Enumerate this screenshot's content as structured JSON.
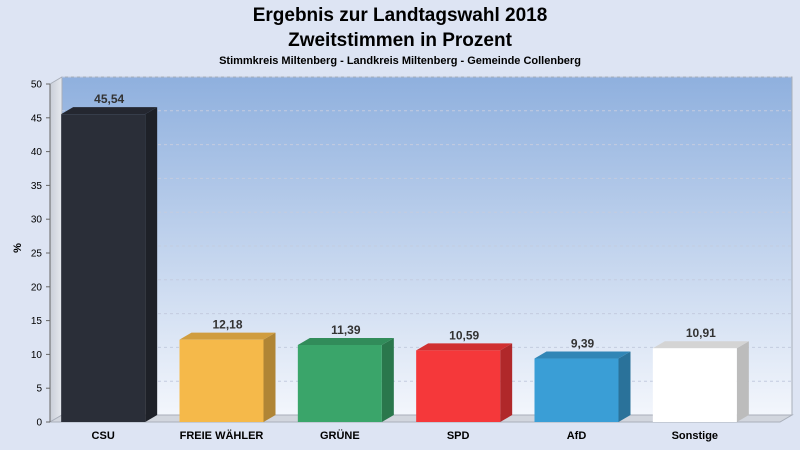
{
  "chart_data": {
    "type": "bar",
    "title": "Ergebnis zur Landtagswahl 2018",
    "title_line2": "Zweitstimmen in Prozent",
    "subtitle": "Stimmkreis Miltenberg - Landkreis Miltenberg - Gemeinde Collenberg",
    "ylabel": "%",
    "ylim": [
      0,
      50
    ],
    "yticks": [
      0,
      5,
      10,
      15,
      20,
      25,
      30,
      35,
      40,
      45,
      50
    ],
    "grid": true,
    "categories": [
      "CSU",
      "FREIE WÄHLER",
      "GRÜNE",
      "SPD",
      "AfD",
      "Sonstige"
    ],
    "values": [
      45.54,
      12.18,
      11.39,
      10.59,
      9.39,
      10.91
    ],
    "value_labels": [
      "45,54",
      "12,18",
      "11,39",
      "10,59",
      "9,39",
      "10,91"
    ],
    "colors": [
      "#2a2e38",
      "#f5b94a",
      "#3aa56a",
      "#f5383a",
      "#3a9ed6",
      "#ffffff"
    ]
  }
}
